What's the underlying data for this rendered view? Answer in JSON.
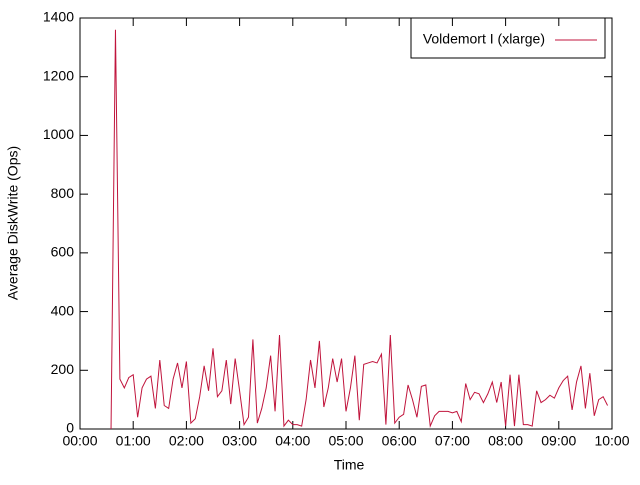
{
  "chart_data": {
    "type": "line",
    "xlabel": "Time",
    "ylabel": "Average DiskWrite (Ops)",
    "xlim": [
      0,
      600
    ],
    "xticks": [
      {
        "value": 0,
        "label": "00:00"
      },
      {
        "value": 60,
        "label": "01:00"
      },
      {
        "value": 120,
        "label": "02:00"
      },
      {
        "value": 180,
        "label": "03:00"
      },
      {
        "value": 240,
        "label": "04:00"
      },
      {
        "value": 300,
        "label": "05:00"
      },
      {
        "value": 360,
        "label": "06:00"
      },
      {
        "value": 420,
        "label": "07:00"
      },
      {
        "value": 480,
        "label": "08:00"
      },
      {
        "value": 540,
        "label": "09:00"
      },
      {
        "value": 600,
        "label": "10:00"
      }
    ],
    "ylim": [
      0,
      1400
    ],
    "yticks": [
      0,
      200,
      400,
      600,
      800,
      1000,
      1200,
      1400
    ],
    "grid": false,
    "legend": "top-right",
    "x": [
      35,
      40,
      45,
      50,
      55,
      60,
      65,
      70,
      75,
      80,
      85,
      90,
      95,
      100,
      105,
      110,
      115,
      120,
      125,
      130,
      135,
      140,
      145,
      150,
      155,
      160,
      165,
      170,
      175,
      180,
      185,
      190,
      195,
      200,
      205,
      210,
      215,
      220,
      225,
      230,
      235,
      240,
      245,
      250,
      255,
      260,
      265,
      270,
      275,
      280,
      285,
      290,
      295,
      300,
      305,
      310,
      315,
      320,
      325,
      330,
      335,
      340,
      345,
      350,
      355,
      360,
      365,
      370,
      375,
      380,
      385,
      390,
      395,
      400,
      405,
      410,
      415,
      420,
      425,
      430,
      435,
      440,
      445,
      450,
      455,
      460,
      465,
      470,
      475,
      480,
      485,
      490,
      495,
      500,
      505,
      510,
      515,
      520,
      525,
      530,
      535,
      540,
      545,
      550,
      555,
      560,
      565,
      570,
      575,
      580,
      585,
      590,
      595
    ],
    "series": [
      {
        "name": "Voldemort I (xlarge)",
        "color": "#c0143c",
        "values": [
          0,
          1360,
          170,
          140,
          175,
          185,
          40,
          140,
          170,
          180,
          70,
          235,
          80,
          70,
          170,
          225,
          140,
          230,
          20,
          35,
          110,
          215,
          130,
          275,
          110,
          130,
          235,
          85,
          240,
          130,
          15,
          40,
          305,
          20,
          70,
          140,
          250,
          60,
          320,
          10,
          30,
          15,
          15,
          10,
          100,
          235,
          140,
          300,
          75,
          140,
          240,
          160,
          240,
          60,
          140,
          250,
          30,
          220,
          225,
          230,
          225,
          255,
          15,
          320,
          20,
          40,
          50,
          150,
          100,
          40,
          145,
          150,
          10,
          45,
          60,
          60,
          60,
          55,
          60,
          25,
          155,
          100,
          125,
          120,
          90,
          120,
          160,
          90,
          160,
          10,
          185,
          10,
          185,
          15,
          15,
          10,
          130,
          90,
          100,
          115,
          105,
          140,
          165,
          180,
          65,
          160,
          215,
          70,
          190,
          45,
          100,
          110,
          80
        ]
      }
    ]
  }
}
